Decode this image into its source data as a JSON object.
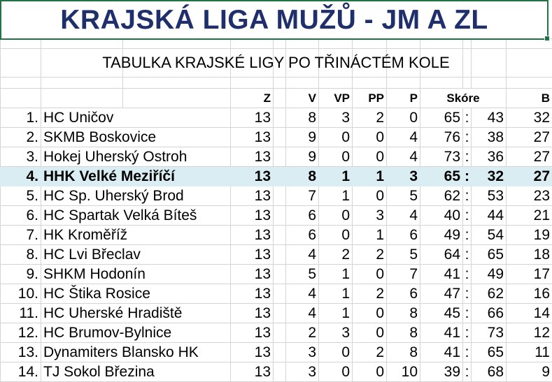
{
  "title": "KRAJSKÁ LIGA MUŽŮ - JM A ZL",
  "subtitle": "TABULKA KRAJSKÉ LIGY PO TŘINÁCTÉM KOLE",
  "headers": {
    "z": "Z",
    "v": "V",
    "vp": "VP",
    "pp": "PP",
    "p": "P",
    "score": "Skóre",
    "b": "B"
  },
  "highlight_color": "#daedf3",
  "rows": [
    {
      "rank": "1.",
      "team": "HC Uničov",
      "z": "13",
      "v": "8",
      "vp": "3",
      "pp": "2",
      "p": "0",
      "gf": "65",
      "ga": "43",
      "b": "32"
    },
    {
      "rank": "2.",
      "team": "SKMB Boskovice",
      "z": "13",
      "v": "9",
      "vp": "0",
      "pp": "0",
      "p": "4",
      "gf": "76",
      "ga": "38",
      "b": "27"
    },
    {
      "rank": "3.",
      "team": "Hokej Uherský Ostroh",
      "z": "13",
      "v": "9",
      "vp": "0",
      "pp": "0",
      "p": "4",
      "gf": "73",
      "ga": "36",
      "b": "27"
    },
    {
      "rank": "4.",
      "team": "HHK Velké Meziříčí",
      "z": "13",
      "v": "8",
      "vp": "1",
      "pp": "1",
      "p": "3",
      "gf": "65",
      "ga": "32",
      "b": "27",
      "highlight": true
    },
    {
      "rank": "5.",
      "team": "HC Sp. Uherský Brod",
      "z": "13",
      "v": "7",
      "vp": "1",
      "pp": "0",
      "p": "5",
      "gf": "62",
      "ga": "53",
      "b": "23"
    },
    {
      "rank": "6.",
      "team": "HC Spartak Velká Bíteš",
      "z": "13",
      "v": "6",
      "vp": "0",
      "pp": "3",
      "p": "4",
      "gf": "40",
      "ga": "44",
      "b": "21"
    },
    {
      "rank": "7.",
      "team": "HK Kroměříž",
      "z": "13",
      "v": "6",
      "vp": "0",
      "pp": "1",
      "p": "6",
      "gf": "49",
      "ga": "54",
      "b": "19"
    },
    {
      "rank": "8.",
      "team": "HC Lvi Břeclav",
      "z": "13",
      "v": "4",
      "vp": "2",
      "pp": "2",
      "p": "5",
      "gf": "64",
      "ga": "65",
      "b": "18"
    },
    {
      "rank": "9.",
      "team": "SHKM Hodonín",
      "z": "13",
      "v": "5",
      "vp": "1",
      "pp": "0",
      "p": "7",
      "gf": "41",
      "ga": "49",
      "b": "17"
    },
    {
      "rank": "10.",
      "team": "HC Štika Rosice",
      "z": "13",
      "v": "4",
      "vp": "1",
      "pp": "2",
      "p": "6",
      "gf": "47",
      "ga": "62",
      "b": "16"
    },
    {
      "rank": "11.",
      "team": "HC Uherské Hradiště",
      "z": "13",
      "v": "4",
      "vp": "1",
      "pp": "0",
      "p": "8",
      "gf": "45",
      "ga": "66",
      "b": "14"
    },
    {
      "rank": "12.",
      "team": "HC Brumov-Bylnice",
      "z": "13",
      "v": "2",
      "vp": "3",
      "pp": "0",
      "p": "8",
      "gf": "41",
      "ga": "73",
      "b": "12"
    },
    {
      "rank": "13.",
      "team": "Dynamiters Blansko HK",
      "z": "13",
      "v": "3",
      "vp": "0",
      "pp": "2",
      "p": "8",
      "gf": "41",
      "ga": "65",
      "b": "11"
    },
    {
      "rank": "14.",
      "team": "TJ Sokol Březina",
      "z": "13",
      "v": "3",
      "vp": "0",
      "pp": "0",
      "p": "10",
      "gf": "39",
      "ga": "68",
      "b": "9"
    }
  ],
  "score_separator": ":"
}
